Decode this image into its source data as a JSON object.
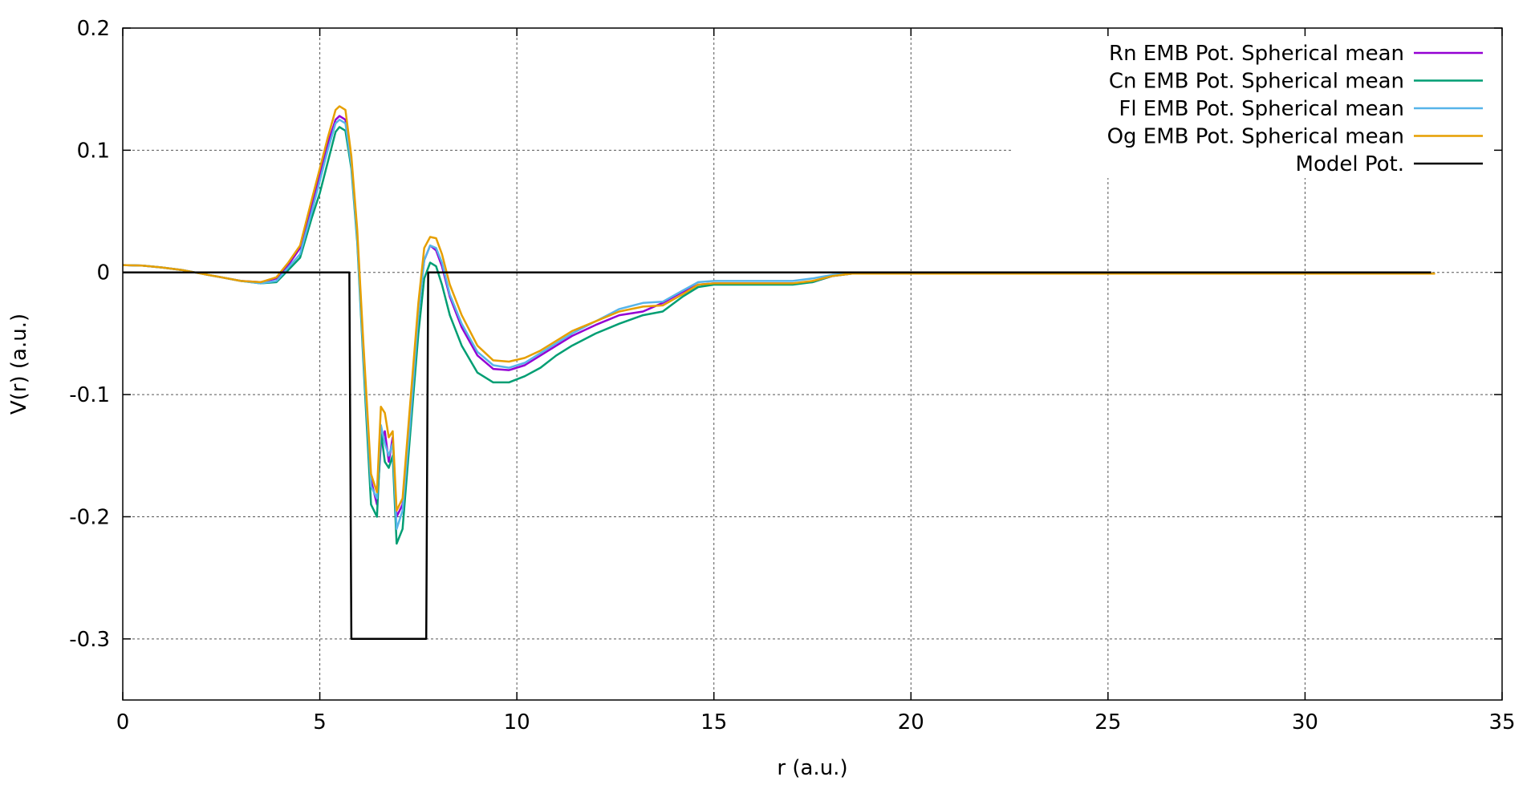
{
  "chart_data": {
    "type": "line",
    "title": "",
    "xlabel": "r (a.u.)",
    "ylabel": "V(r) (a.u.)",
    "xlim": [
      0,
      35
    ],
    "ylim": [
      -0.35,
      0.2
    ],
    "grid": true,
    "legend_position": "top-right",
    "x_ticks": [
      0,
      5,
      10,
      15,
      20,
      25,
      30,
      35
    ],
    "y_ticks": [
      0.2,
      0.1,
      0,
      -0.1,
      -0.2,
      -0.3
    ],
    "x_tick_labels": [
      "0",
      "5",
      "10",
      "15",
      "20",
      "25",
      "30",
      "35"
    ],
    "y_tick_labels": [
      "0.2",
      "0.1",
      "0",
      "-0.1",
      "-0.2",
      "-0.3"
    ],
    "series": [
      {
        "name": "Rn EMB Pot. Spherical mean",
        "color": "#9400d3",
        "points": [
          [
            0,
            0.006
          ],
          [
            0.5,
            0.0055
          ],
          [
            1.0,
            0.004
          ],
          [
            1.5,
            0.002
          ],
          [
            2.0,
            -0.001
          ],
          [
            2.5,
            -0.004
          ],
          [
            3.0,
            -0.007
          ],
          [
            3.5,
            -0.008
          ],
          [
            3.9,
            -0.005
          ],
          [
            4.2,
            0.006
          ],
          [
            4.5,
            0.02
          ],
          [
            4.8,
            0.055
          ],
          [
            5.0,
            0.08
          ],
          [
            5.2,
            0.105
          ],
          [
            5.4,
            0.125
          ],
          [
            5.5,
            0.128
          ],
          [
            5.65,
            0.125
          ],
          [
            5.8,
            0.09
          ],
          [
            5.95,
            0.03
          ],
          [
            6.1,
            -0.06
          ],
          [
            6.3,
            -0.17
          ],
          [
            6.45,
            -0.19
          ],
          [
            6.55,
            -0.14
          ],
          [
            6.65,
            -0.13
          ],
          [
            6.75,
            -0.155
          ],
          [
            6.85,
            -0.135
          ],
          [
            6.95,
            -0.2
          ],
          [
            7.1,
            -0.19
          ],
          [
            7.3,
            -0.12
          ],
          [
            7.5,
            -0.03
          ],
          [
            7.65,
            0.01
          ],
          [
            7.8,
            0.022
          ],
          [
            7.95,
            0.018
          ],
          [
            8.1,
            0.005
          ],
          [
            8.3,
            -0.02
          ],
          [
            8.6,
            -0.045
          ],
          [
            9.0,
            -0.068
          ],
          [
            9.4,
            -0.079
          ],
          [
            9.8,
            -0.08
          ],
          [
            10.2,
            -0.076
          ],
          [
            10.6,
            -0.068
          ],
          [
            11.0,
            -0.06
          ],
          [
            11.4,
            -0.052
          ],
          [
            12.0,
            -0.043
          ],
          [
            12.6,
            -0.035
          ],
          [
            13.2,
            -0.032
          ],
          [
            13.7,
            -0.025
          ],
          [
            14.2,
            -0.016
          ],
          [
            14.6,
            -0.01
          ],
          [
            15.0,
            -0.009
          ],
          [
            16.0,
            -0.009
          ],
          [
            17.0,
            -0.009
          ],
          [
            17.5,
            -0.008
          ],
          [
            18.0,
            -0.003
          ],
          [
            18.5,
            -0.001
          ],
          [
            20,
            -0.001
          ],
          [
            23,
            -0.001
          ],
          [
            28,
            -0.001
          ],
          [
            33,
            -0.001
          ],
          [
            33.3,
            -0.001
          ]
        ]
      },
      {
        "name": "Cn EMB Pot. Spherical mean",
        "color": "#009e73",
        "points": [
          [
            0,
            0.006
          ],
          [
            0.5,
            0.0055
          ],
          [
            1.0,
            0.004
          ],
          [
            1.5,
            0.002
          ],
          [
            2.0,
            -0.001
          ],
          [
            2.5,
            -0.004
          ],
          [
            3.0,
            -0.007
          ],
          [
            3.5,
            -0.009
          ],
          [
            3.9,
            -0.008
          ],
          [
            4.2,
            0.002
          ],
          [
            4.5,
            0.012
          ],
          [
            4.8,
            0.045
          ],
          [
            5.0,
            0.065
          ],
          [
            5.2,
            0.09
          ],
          [
            5.4,
            0.115
          ],
          [
            5.5,
            0.119
          ],
          [
            5.65,
            0.116
          ],
          [
            5.8,
            0.085
          ],
          [
            5.95,
            0.025
          ],
          [
            6.1,
            -0.07
          ],
          [
            6.3,
            -0.19
          ],
          [
            6.45,
            -0.2
          ],
          [
            6.55,
            -0.13
          ],
          [
            6.65,
            -0.155
          ],
          [
            6.75,
            -0.16
          ],
          [
            6.85,
            -0.15
          ],
          [
            6.95,
            -0.222
          ],
          [
            7.1,
            -0.21
          ],
          [
            7.3,
            -0.13
          ],
          [
            7.5,
            -0.05
          ],
          [
            7.65,
            -0.005
          ],
          [
            7.8,
            0.008
          ],
          [
            7.95,
            0.005
          ],
          [
            8.1,
            -0.01
          ],
          [
            8.3,
            -0.035
          ],
          [
            8.6,
            -0.06
          ],
          [
            9.0,
            -0.082
          ],
          [
            9.4,
            -0.09
          ],
          [
            9.8,
            -0.09
          ],
          [
            10.2,
            -0.085
          ],
          [
            10.6,
            -0.078
          ],
          [
            11.0,
            -0.068
          ],
          [
            11.4,
            -0.06
          ],
          [
            12.0,
            -0.05
          ],
          [
            12.6,
            -0.042
          ],
          [
            13.2,
            -0.035
          ],
          [
            13.7,
            -0.032
          ],
          [
            14.2,
            -0.02
          ],
          [
            14.6,
            -0.012
          ],
          [
            15.0,
            -0.01
          ],
          [
            16.0,
            -0.01
          ],
          [
            17.0,
            -0.01
          ],
          [
            17.5,
            -0.008
          ],
          [
            18.0,
            -0.003
          ],
          [
            18.5,
            -0.001
          ],
          [
            20,
            -0.001
          ],
          [
            23,
            -0.001
          ],
          [
            28,
            -0.001
          ],
          [
            33,
            -0.001
          ],
          [
            33.3,
            -0.001
          ]
        ]
      },
      {
        "name": "Fl EMB Pot. Spherical mean",
        "color": "#56b4e9",
        "points": [
          [
            0,
            0.006
          ],
          [
            0.5,
            0.0055
          ],
          [
            1.0,
            0.004
          ],
          [
            1.5,
            0.002
          ],
          [
            2.0,
            -0.001
          ],
          [
            2.5,
            -0.004
          ],
          [
            3.0,
            -0.007
          ],
          [
            3.5,
            -0.009
          ],
          [
            3.9,
            -0.007
          ],
          [
            4.2,
            0.004
          ],
          [
            4.5,
            0.015
          ],
          [
            4.8,
            0.05
          ],
          [
            5.0,
            0.075
          ],
          [
            5.2,
            0.1
          ],
          [
            5.4,
            0.122
          ],
          [
            5.5,
            0.125
          ],
          [
            5.65,
            0.122
          ],
          [
            5.8,
            0.088
          ],
          [
            5.95,
            0.028
          ],
          [
            6.1,
            -0.065
          ],
          [
            6.3,
            -0.175
          ],
          [
            6.45,
            -0.185
          ],
          [
            6.55,
            -0.125
          ],
          [
            6.65,
            -0.14
          ],
          [
            6.75,
            -0.15
          ],
          [
            6.85,
            -0.14
          ],
          [
            6.95,
            -0.21
          ],
          [
            7.1,
            -0.195
          ],
          [
            7.3,
            -0.12
          ],
          [
            7.5,
            -0.035
          ],
          [
            7.65,
            0.01
          ],
          [
            7.8,
            0.022
          ],
          [
            7.95,
            0.02
          ],
          [
            8.1,
            0.008
          ],
          [
            8.3,
            -0.018
          ],
          [
            8.6,
            -0.042
          ],
          [
            9.0,
            -0.065
          ],
          [
            9.4,
            -0.076
          ],
          [
            9.8,
            -0.078
          ],
          [
            10.2,
            -0.074
          ],
          [
            10.6,
            -0.066
          ],
          [
            11.0,
            -0.058
          ],
          [
            11.4,
            -0.05
          ],
          [
            12.0,
            -0.04
          ],
          [
            12.6,
            -0.03
          ],
          [
            13.2,
            -0.025
          ],
          [
            13.7,
            -0.024
          ],
          [
            14.2,
            -0.015
          ],
          [
            14.6,
            -0.008
          ],
          [
            15.0,
            -0.007
          ],
          [
            16.0,
            -0.007
          ],
          [
            17.0,
            -0.007
          ],
          [
            17.5,
            -0.005
          ],
          [
            18.0,
            -0.002
          ],
          [
            18.5,
            -0.001
          ],
          [
            20,
            -0.001
          ],
          [
            23,
            -0.001
          ],
          [
            28,
            -0.001
          ],
          [
            33,
            -0.001
          ],
          [
            33.3,
            -0.001
          ]
        ]
      },
      {
        "name": "Og EMB Pot. Spherical mean",
        "color": "#e69f00",
        "points": [
          [
            0,
            0.006
          ],
          [
            0.5,
            0.0055
          ],
          [
            1.0,
            0.004
          ],
          [
            1.5,
            0.002
          ],
          [
            2.0,
            -0.001
          ],
          [
            2.5,
            -0.004
          ],
          [
            3.0,
            -0.007
          ],
          [
            3.5,
            -0.008
          ],
          [
            3.9,
            -0.004
          ],
          [
            4.2,
            0.008
          ],
          [
            4.5,
            0.022
          ],
          [
            4.8,
            0.06
          ],
          [
            5.0,
            0.085
          ],
          [
            5.2,
            0.11
          ],
          [
            5.4,
            0.133
          ],
          [
            5.5,
            0.136
          ],
          [
            5.65,
            0.133
          ],
          [
            5.8,
            0.095
          ],
          [
            5.95,
            0.035
          ],
          [
            6.1,
            -0.055
          ],
          [
            6.3,
            -0.165
          ],
          [
            6.45,
            -0.18
          ],
          [
            6.55,
            -0.11
          ],
          [
            6.65,
            -0.115
          ],
          [
            6.75,
            -0.135
          ],
          [
            6.85,
            -0.13
          ],
          [
            6.95,
            -0.195
          ],
          [
            7.1,
            -0.185
          ],
          [
            7.3,
            -0.105
          ],
          [
            7.5,
            -0.025
          ],
          [
            7.65,
            0.02
          ],
          [
            7.8,
            0.029
          ],
          [
            7.95,
            0.028
          ],
          [
            8.1,
            0.015
          ],
          [
            8.3,
            -0.01
          ],
          [
            8.6,
            -0.035
          ],
          [
            9.0,
            -0.06
          ],
          [
            9.4,
            -0.072
          ],
          [
            9.8,
            -0.073
          ],
          [
            10.2,
            -0.07
          ],
          [
            10.6,
            -0.064
          ],
          [
            11.0,
            -0.056
          ],
          [
            11.4,
            -0.048
          ],
          [
            12.0,
            -0.04
          ],
          [
            12.6,
            -0.032
          ],
          [
            13.2,
            -0.028
          ],
          [
            13.7,
            -0.027
          ],
          [
            14.2,
            -0.018
          ],
          [
            14.6,
            -0.01
          ],
          [
            15.0,
            -0.009
          ],
          [
            16.0,
            -0.009
          ],
          [
            17.0,
            -0.009
          ],
          [
            17.5,
            -0.007
          ],
          [
            18.0,
            -0.003
          ],
          [
            18.5,
            -0.001
          ],
          [
            20,
            -0.001
          ],
          [
            23,
            -0.001
          ],
          [
            28,
            -0.001
          ],
          [
            33,
            -0.001
          ],
          [
            33.3,
            -0.001
          ]
        ]
      },
      {
        "name": "Model Pot.",
        "color": "#000000",
        "points": [
          [
            0,
            0
          ],
          [
            5.75,
            0
          ],
          [
            5.8,
            -0.3
          ],
          [
            7.7,
            -0.3
          ],
          [
            7.75,
            0
          ],
          [
            33.2,
            0
          ]
        ]
      }
    ]
  }
}
